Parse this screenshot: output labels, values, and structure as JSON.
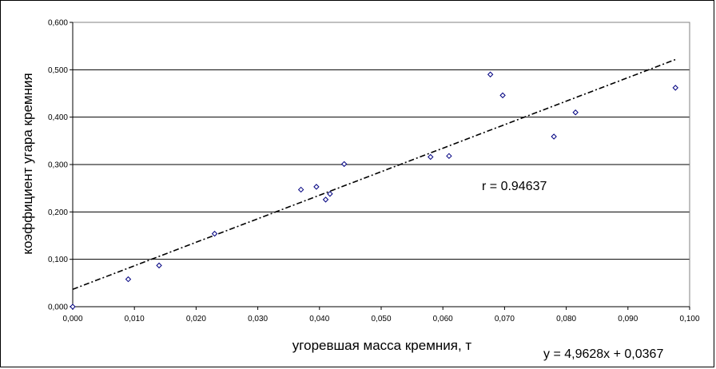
{
  "chart_data": {
    "type": "scatter",
    "title": "",
    "xlabel": "угоревшая масса кремния, т",
    "ylabel": "коэффициент угара кремния",
    "xlim": [
      0,
      0.1
    ],
    "ylim": [
      0,
      0.6
    ],
    "x_ticks": [
      "0,000",
      "0,010",
      "0,020",
      "0,030",
      "0,040",
      "0,050",
      "0,060",
      "0,070",
      "0,080",
      "0,090",
      "0,100"
    ],
    "y_ticks": [
      "0,000",
      "0,100",
      "0,200",
      "0,300",
      "0,400",
      "0,500",
      "0,600"
    ],
    "grid": "horizontal",
    "marker": "diamond",
    "points": [
      {
        "x": 0.0,
        "y": 0.0
      },
      {
        "x": 0.009,
        "y": 0.058
      },
      {
        "x": 0.014,
        "y": 0.087
      },
      {
        "x": 0.023,
        "y": 0.154
      },
      {
        "x": 0.037,
        "y": 0.247
      },
      {
        "x": 0.0395,
        "y": 0.253
      },
      {
        "x": 0.041,
        "y": 0.226
      },
      {
        "x": 0.0417,
        "y": 0.238
      },
      {
        "x": 0.044,
        "y": 0.301
      },
      {
        "x": 0.058,
        "y": 0.316
      },
      {
        "x": 0.061,
        "y": 0.318
      },
      {
        "x": 0.0677,
        "y": 0.49
      },
      {
        "x": 0.0697,
        "y": 0.446
      },
      {
        "x": 0.078,
        "y": 0.359
      },
      {
        "x": 0.0815,
        "y": 0.41
      },
      {
        "x": 0.0977,
        "y": 0.462
      }
    ],
    "trendline": {
      "slope": 4.9628,
      "intercept": 0.0367,
      "x_range": [
        0,
        0.0977
      ],
      "style": "dash-dot"
    },
    "annotations": {
      "r_label": "r = 0.94637",
      "equation": "y = 4,9628x + 0,0367"
    },
    "colors": {
      "marker": "#000080",
      "trendline": "#000000",
      "grid": "#000000"
    }
  }
}
